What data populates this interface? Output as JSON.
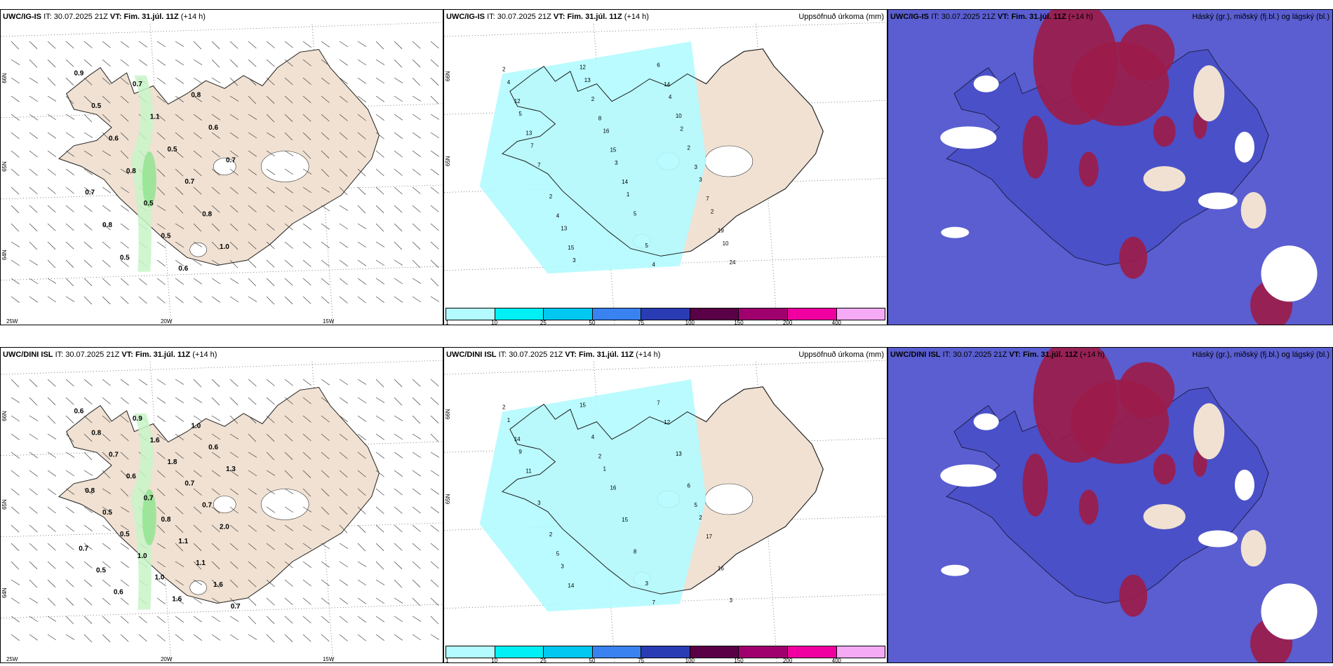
{
  "panels": [
    {
      "id": "igis-wind",
      "model": "UWC/IG-IS",
      "it_prefix": "IT:",
      "it_value": "30.07.2025 21Z",
      "vt_prefix": "VT:",
      "vt_value": "Fim. 31.júl. 11Z",
      "lead": "(+14 h)",
      "right_title": "",
      "lat_labels": [
        "66N",
        "65N",
        "64N"
      ],
      "lon_labels": [
        "25W",
        "20W",
        "15W"
      ],
      "values": [
        "0.9",
        "0.7",
        "0.8",
        "0.5",
        "1.1",
        "0.6",
        "0.6",
        "0.5",
        "0.7",
        "0.8",
        "0.7",
        "0.7",
        "0.5",
        "0.8",
        "0.8",
        "0.5",
        "1.0",
        "0.5",
        "0.6"
      ]
    },
    {
      "id": "igis-precip",
      "model": "UWC/IG-IS",
      "it_prefix": "IT:",
      "it_value": "30.07.2025 21Z",
      "vt_prefix": "VT:",
      "vt_value": "Fim. 31.júl. 11Z",
      "lead": "(+14 h)",
      "right_title": "Uppsöfnuð úrkoma (mm)",
      "lat_labels": [
        "66N",
        "65N"
      ],
      "lon_labels": [],
      "values": [
        "2",
        "8",
        "3",
        "4",
        "4",
        "12",
        "15",
        "7",
        "15",
        "14",
        "13",
        "14",
        "19",
        "12",
        "10",
        "7",
        "5",
        "24",
        "2",
        "2",
        "2",
        "5",
        "4",
        "16",
        "3",
        "13",
        "6",
        "5",
        "3",
        "2",
        "3",
        "4",
        "7",
        "1",
        "10",
        "13",
        "2"
      ]
    },
    {
      "id": "igis-cloud",
      "model": "UWC/IG-IS",
      "it_prefix": "IT:",
      "it_value": "30.07.2025 21Z",
      "vt_prefix": "VT:",
      "vt_value": "Fim. 31.júl. 11Z",
      "lead": "(+14 h)",
      "right_title": "Háský (gr.), miðský (fj.bl.) og lágský (bl.)",
      "lat_labels": [],
      "lon_labels": [],
      "values": []
    },
    {
      "id": "dini-wind",
      "model": "UWC/DINI ISL",
      "it_prefix": "IT:",
      "it_value": "30.07.2025 21Z",
      "vt_prefix": "VT:",
      "vt_value": "Fim. 31.júl. 11Z",
      "lead": "(+14 h)",
      "right_title": "",
      "lat_labels": [
        "66N",
        "65N",
        "64N"
      ],
      "lon_labels": [
        "25W",
        "20W",
        "15W"
      ],
      "values": [
        "0.6",
        "0.9",
        "1.0",
        "0.8",
        "1.6",
        "0.6",
        "0.7",
        "1.8",
        "1.3",
        "0.6",
        "0.7",
        "0.8",
        "0.7",
        "0.7",
        "0.5",
        "0.8",
        "2.0",
        "0.5",
        "1.1",
        "0.7",
        "1.0",
        "1.1",
        "0.5",
        "1.0",
        "1.6",
        "0.6",
        "1.6",
        "0.7"
      ]
    },
    {
      "id": "dini-precip",
      "model": "UWC/DINI ISL",
      "it_prefix": "IT:",
      "it_value": "30.07.2025 21Z",
      "vt_prefix": "VT:",
      "vt_value": "Fim. 31.júl. 11Z",
      "lead": "(+14 h)",
      "right_title": "Uppsöfnuð úrkoma (mm)",
      "lat_labels": [
        "66N",
        "65N"
      ],
      "lon_labels": [],
      "values": [
        "2",
        "2",
        "5",
        "5",
        "7",
        "14",
        "16",
        "17",
        "14",
        "12",
        "11",
        "15",
        "16",
        "15",
        "13",
        "3",
        "8",
        "3",
        "4",
        "6",
        "2",
        "3",
        "1",
        "1",
        "2",
        "3",
        "7",
        "9"
      ]
    },
    {
      "id": "dini-cloud",
      "model": "UWC/DINI ISL",
      "it_prefix": "IT:",
      "it_value": "30.07.2025 21Z",
      "vt_prefix": "VT:",
      "vt_value": "Fim. 31.júl. 11Z",
      "lead": "(+14 h)",
      "right_title": "Háský (gr.), miðský (fj.bl.) og lágský (bl.)",
      "lat_labels": [],
      "lon_labels": [],
      "values": []
    }
  ],
  "colorbar": {
    "colors": [
      "#b3fbff",
      "#00f0f5",
      "#00c8f0",
      "#3a82f0",
      "#2a3cb4",
      "#5a0046",
      "#a0006e",
      "#f000a0",
      "#f5aaf5"
    ],
    "labels": [
      "1",
      "10",
      "25",
      "50",
      "75",
      "100",
      "150",
      "200",
      "400"
    ]
  },
  "colors": {
    "land": "#f0e1d2",
    "sea": "#ffffff",
    "precip_light": "#b3fbff",
    "wind_green_light": "#c8f5c8",
    "wind_green_mid": "#8ee38e",
    "wind_green_dark": "#1f6b2a",
    "high_cloud": "#9b1c4a",
    "mid_cloud": "#5a5ed0",
    "low_cloud": "#3a4cd8"
  }
}
